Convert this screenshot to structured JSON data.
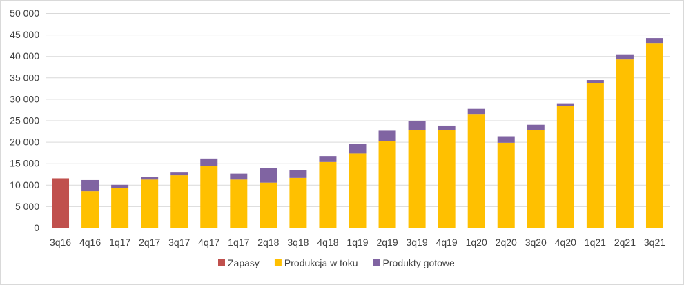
{
  "chart_data": {
    "type": "bar",
    "stacked": true,
    "title": "",
    "xlabel": "",
    "ylabel": "",
    "ylim": [
      0,
      50000
    ],
    "yticks": [
      "0",
      "5 000",
      "10 000",
      "15 000",
      "20 000",
      "25 000",
      "30 000",
      "35 000",
      "40 000",
      "45 000",
      "50 000"
    ],
    "ytick_values": [
      0,
      5000,
      10000,
      15000,
      20000,
      25000,
      30000,
      35000,
      40000,
      45000,
      50000
    ],
    "grid": true,
    "legend_position": "bottom",
    "categories": [
      "3q16",
      "4q16",
      "1q17",
      "2q17",
      "3q17",
      "4q17",
      "1q17",
      "2q18",
      "3q18",
      "4q18",
      "1q19",
      "2q19",
      "3q19",
      "4q19",
      "1q20",
      "2q20",
      "3q20",
      "4q20",
      "1q21",
      "2q21",
      "3q21"
    ],
    "series": [
      {
        "name": "Zapasy",
        "color": "#c0504d",
        "values": [
          11500,
          0,
          0,
          0,
          0,
          0,
          0,
          0,
          0,
          0,
          0,
          0,
          0,
          0,
          0,
          0,
          0,
          0,
          0,
          0,
          0
        ]
      },
      {
        "name": "Produkcja w toku",
        "color": "#ffc000",
        "values": [
          0,
          8500,
          9200,
          11200,
          12200,
          14400,
          11200,
          10500,
          11600,
          15300,
          17300,
          20200,
          22800,
          22800,
          26500,
          19800,
          22800,
          28300,
          33600,
          39200,
          42900
        ]
      },
      {
        "name": "Produkty gotowe",
        "color": "#8064a2",
        "values": [
          0,
          2600,
          800,
          600,
          800,
          1700,
          1400,
          3400,
          1800,
          1400,
          2200,
          2400,
          2000,
          1000,
          1200,
          1500,
          1200,
          700,
          800,
          1200,
          1300
        ]
      }
    ]
  }
}
